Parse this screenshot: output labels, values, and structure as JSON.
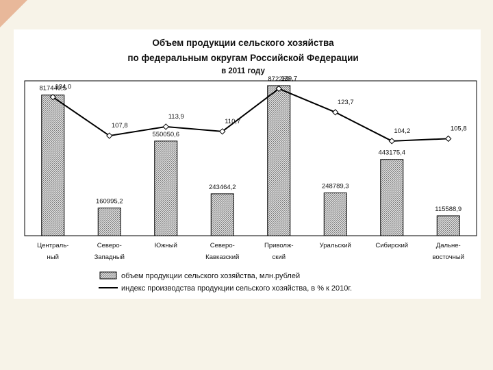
{
  "colors": {
    "background": "#f7f3e8",
    "panel": "#ffffff",
    "bar_fill": "#c8c8c8",
    "bar_stroke": "#000000",
    "line": "#000000",
    "accent_corner": "#e8b89a"
  },
  "chart_data": {
    "type": "bar",
    "title": "Объем продукции сельского хозяйства",
    "title_line2": "по федеральным округам Российской Федерации",
    "subtitle": "в 2011 году",
    "categories": [
      [
        "Централь-",
        "ный"
      ],
      [
        "Северо-",
        "Западный"
      ],
      [
        "Южный",
        ""
      ],
      [
        "Северо-",
        "Кавказский"
      ],
      [
        "Приволж-",
        "ский"
      ],
      [
        "Уральский",
        ""
      ],
      [
        "Сибирский",
        ""
      ],
      [
        "Дальне-",
        "восточный"
      ]
    ],
    "series": [
      {
        "name": "объем продукции  сельского хозяйства, млн.рублей",
        "type": "bar",
        "axis": "left",
        "values": [
          817449.5,
          160995.2,
          550050.6,
          243464.2,
          872269,
          248789.3,
          443175.4,
          115588.9
        ],
        "labels": [
          "817449,5",
          "160995,2",
          "550050,6",
          "243464,2",
          "872269",
          "248789,3",
          "443175,4",
          "115588,9"
        ]
      },
      {
        "name": "индекс производства продукции сельского хозяйства, в % к 2010г.",
        "type": "line",
        "axis": "right",
        "values": [
          134.0,
          107.8,
          113.9,
          110.7,
          139.7,
          123.7,
          104.2,
          105.8
        ],
        "labels": [
          "134,0",
          "107,8",
          "113,9",
          "110,7",
          "139,7",
          "123,7",
          "104,2",
          "105,8"
        ]
      }
    ],
    "bar_axis_range": [
      0,
      900000
    ],
    "line_axis_range": [
      40,
      145
    ],
    "grid": false,
    "legend_position": "bottom"
  }
}
